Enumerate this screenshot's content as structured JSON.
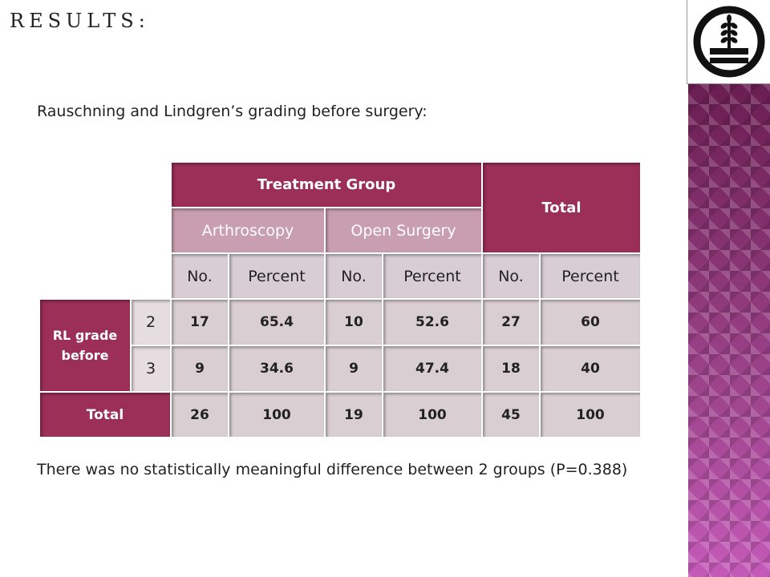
{
  "title": "RESULTS:",
  "subtitle": "Rauschning and Lindgren’s grading before surgery:",
  "note": "There was no statistically meaningful difference between 2 groups (P=0.388)",
  "table": {
    "header_group": "Treatment Group",
    "header_total": "Total",
    "sub_arthro": "Arthroscopy",
    "sub_open": "Open Surgery",
    "col_no": "No.",
    "col_percent": "Percent",
    "row_label": "RL grade before",
    "rows": [
      {
        "grade": "2",
        "a_no": "17",
        "a_pct": "65.4",
        "o_no": "10",
        "o_pct": "52.6",
        "t_no": "27",
        "t_pct": "60"
      },
      {
        "grade": "3",
        "a_no": "9",
        "a_pct": "34.6",
        "o_no": "9",
        "o_pct": "47.4",
        "t_no": "18",
        "t_pct": "40"
      }
    ],
    "total_label": "Total",
    "total_row": {
      "a_no": "26",
      "a_pct": "100",
      "o_no": "19",
      "o_pct": "100",
      "t_no": "45",
      "t_pct": "100"
    }
  },
  "colors": {
    "header": "#9b2f57",
    "subheader": "#c99eb0",
    "cell": "#d9cfd3",
    "band": "#7a2a63"
  }
}
